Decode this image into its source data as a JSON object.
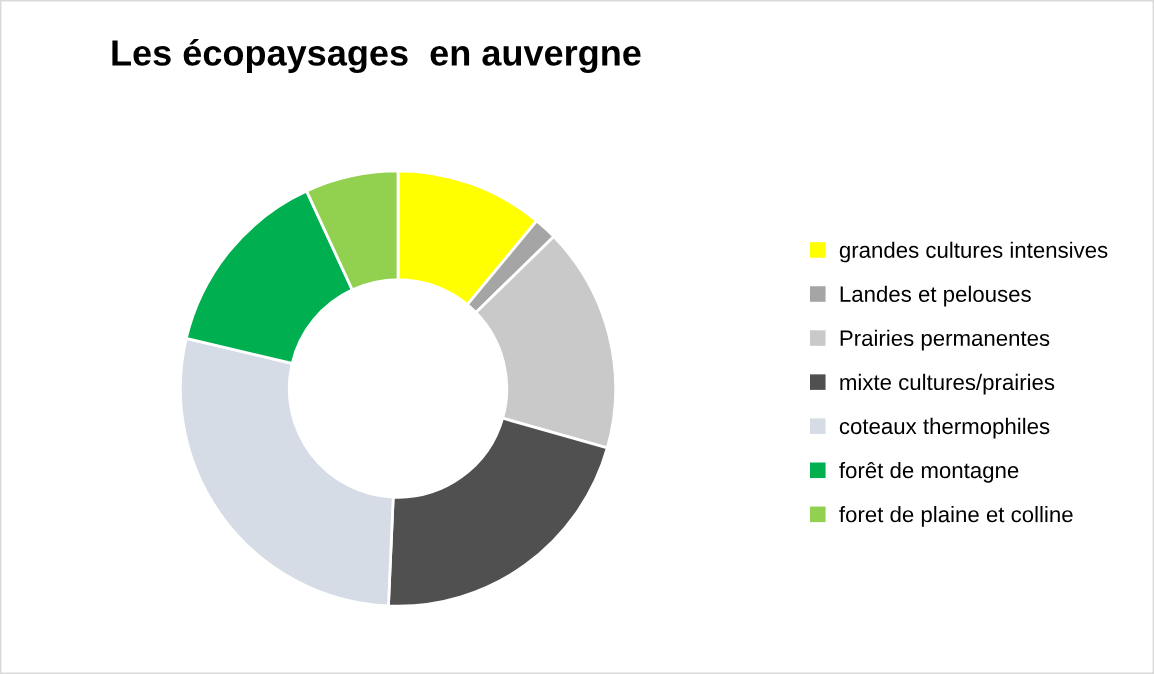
{
  "chart_data": {
    "type": "donut",
    "title": "Les écopaysages  en auvergne",
    "categories": [
      "grandes cultures intensives",
      "Landes et pelouses",
      "Prairies permanentes",
      "mixte cultures/prairies",
      "coteaux thermophiles",
      "forêt de montagne",
      "foret de plaine et colline"
    ],
    "values": [
      11,
      1.7,
      16.7,
      21.3,
      28,
      14.4,
      6.9
    ],
    "colors": [
      "#ffff00",
      "#a5a5a5",
      "#c9c9c9",
      "#505050",
      "#d6dce5",
      "#00b050",
      "#92d050"
    ],
    "legend": "right"
  }
}
